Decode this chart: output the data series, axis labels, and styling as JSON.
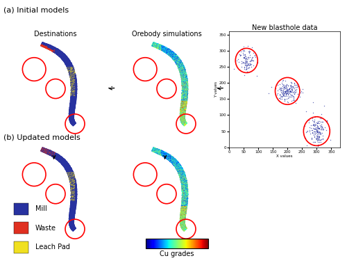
{
  "title_a": "(a) Initial models",
  "title_b": "(b) Updated models",
  "label_destinations": "Destinations",
  "label_simulations": "Orebody simulations",
  "label_blasthole": "New blasthole data",
  "legend_mill": "Mill",
  "legend_waste": "Waste",
  "legend_leach": "Leach Pad",
  "legend_cu": "Cu grades",
  "mill_color": "#2832a0",
  "waste_color": "#e03020",
  "leach_color": "#f0e020",
  "bg_color": "#ffffff",
  "figure_width": 5.0,
  "figure_height": 3.78
}
